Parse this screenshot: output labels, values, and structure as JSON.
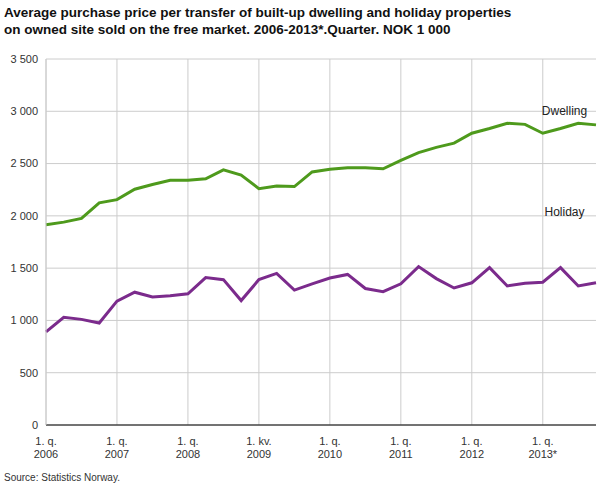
{
  "chart_data": {
    "type": "line",
    "title": "Average purchase price per transfer of built-up dwelling and holiday properties\non owned site sold on the free market. 2006-2013*.Quarter. NOK 1 000",
    "source": "Source: Statistics Norway.",
    "categories": [
      "1. q.\n2006",
      null,
      null,
      null,
      "1. q.\n2007",
      null,
      null,
      null,
      "1. q.\n2008",
      null,
      null,
      null,
      "1. kv.\n2009",
      null,
      null,
      null,
      "1. q.\n2010",
      null,
      null,
      null,
      "1. q.\n2011",
      null,
      null,
      null,
      "1. q.\n2012",
      null,
      null,
      null,
      "1. q.\n2013*",
      null,
      null,
      null
    ],
    "series": [
      {
        "name": "Dwelling",
        "color": "#4e9a1c",
        "values": [
          1915,
          1940,
          1975,
          2125,
          2155,
          2255,
          2300,
          2340,
          2340,
          2355,
          2440,
          2390,
          2260,
          2285,
          2280,
          2420,
          2445,
          2460,
          2460,
          2450,
          2530,
          2605,
          2655,
          2695,
          2790,
          2835,
          2885,
          2875,
          2790,
          2835,
          2885,
          2870
        ]
      },
      {
        "name": "Holiday",
        "color": "#7b2b8c",
        "values": [
          890,
          1030,
          1010,
          975,
          1185,
          1270,
          1225,
          1235,
          1255,
          1410,
          1390,
          1190,
          1390,
          1450,
          1290,
          1350,
          1405,
          1440,
          1305,
          1275,
          1350,
          1515,
          1400,
          1310,
          1360,
          1505,
          1330,
          1355,
          1365,
          1505,
          1330,
          1360
        ]
      }
    ],
    "ylim": [
      0,
      3500
    ],
    "yticks": [
      0,
      500,
      {
        "value": 1000,
        "label": "1 000"
      },
      {
        "value": 1500,
        "label": "1 500"
      },
      {
        "value": 2000,
        "label": "2 000"
      },
      {
        "value": 2500,
        "label": "2 500"
      },
      {
        "value": 3000,
        "label": "3 000"
      },
      {
        "value": 3500,
        "label": "3 500"
      }
    ],
    "grid": true
  }
}
